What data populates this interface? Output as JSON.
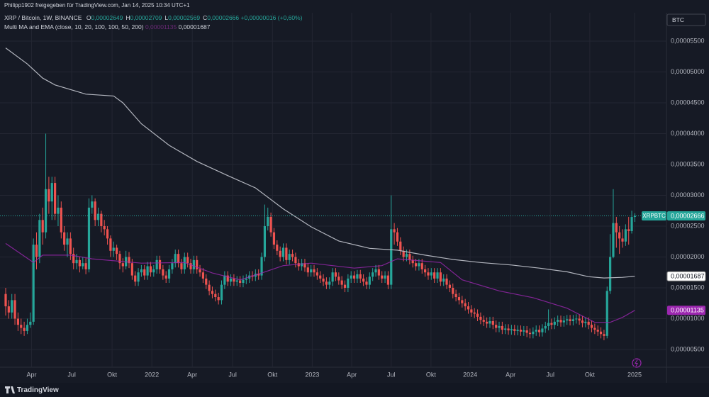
{
  "header": {
    "title": "Philipp1902 freigegeben für TradingView.com, Jan 14, 2025 10:34 UTC+1"
  },
  "chart_data": {
    "type": "candlestick",
    "symbol": "XRP / Bitcoin, 1W, BINANCE",
    "ohlc_legend": [
      {
        "key": "O",
        "value": "0,00002649"
      },
      {
        "key": "H",
        "value": "0,00002709"
      },
      {
        "key": "L",
        "value": "0,00002569"
      },
      {
        "key": "C",
        "value": "0,00002666"
      }
    ],
    "change": "+0,00000016 (+0,60%)",
    "indicator": "Multi MA and EMA (close, 10, 20, 100, 100, 50, 200)",
    "currency": "BTC",
    "ticker": "XRPBTC",
    "up_color": "#26a69a",
    "down_color": "#ef5350",
    "open": [
      1.4e-05,
      1.2e-05,
      1.1e-05,
      1.3e-05,
      1e-05,
      9e-06,
      8.5e-06,
      8e-06,
      9e-06,
      9.5e-06,
      2.2e-05,
      2e-05,
      2.6e-05,
      2.4e-05,
      3.1e-05,
      2.9e-05,
      3.2e-05,
      2.7e-05,
      2.8e-05,
      2.4e-05,
      2.2e-05,
      2.3e-05,
      2.05e-05,
      1.9e-05,
      1.95e-05,
      1.85e-05,
      1.9e-05,
      1.8e-05,
      2.8e-05,
      2.9e-05,
      2.6e-05,
      2.7e-05,
      2.5e-05,
      2.45e-05,
      2.3e-05,
      2.1e-05,
      2.15e-05,
      2.05e-05,
      1.9e-05,
      1.85e-05,
      2e-05,
      1.9e-05,
      1.7e-05,
      1.6e-05,
      1.75e-05,
      1.8e-05,
      1.7e-05,
      1.85e-05,
      1.75e-05,
      1.8e-05,
      1.95e-05,
      1.8e-05,
      1.7e-05,
      1.65e-05,
      1.8e-05,
      1.9e-05,
      2.05e-05,
      1.9e-05,
      1.8e-05,
      2e-05,
      1.9e-05,
      1.8e-05,
      1.95e-05,
      1.8e-05,
      1.75e-05,
      1.65e-05,
      1.55e-05,
      1.45e-05,
      1.4e-05,
      1.35e-05,
      1.3e-05,
      1.55e-05,
      1.7e-05,
      1.6e-05,
      1.65e-05,
      1.6e-05,
      1.62e-05,
      1.58e-05,
      1.63e-05,
      1.65e-05,
      1.7e-05,
      1.68e-05,
      1.73e-05,
      1.7e-05,
      2e-05,
      2.5e-05,
      2.65e-05,
      2.4e-05,
      2.2e-05,
      2.1e-05,
      2e-05,
      2.15e-05,
      1.95e-05,
      2.05e-05,
      2e-05,
      1.9e-05,
      1.85e-05,
      1.9e-05,
      1.83e-05,
      1.75e-05,
      1.8e-05,
      1.75e-05,
      1.7e-05,
      1.65e-05,
      1.6e-05,
      1.55e-05,
      1.6e-05,
      1.75e-05,
      1.68e-05,
      1.62e-05,
      1.55e-05,
      1.5e-05,
      1.65e-05,
      1.7e-05,
      1.65e-05,
      1.72e-05,
      1.65e-05,
      1.6e-05,
      1.55e-05,
      1.68e-05,
      1.75e-05,
      1.8e-05,
      1.7e-05,
      1.65e-05,
      1.7e-05,
      1.55e-05,
      2.45e-05,
      2.4e-05,
      2.25e-05,
      2.1e-05,
      2e-05,
      2.05e-05,
      1.95e-05,
      1.9e-05,
      1.85e-05,
      1.9e-05,
      1.8e-05,
      1.75e-05,
      1.7e-05,
      1.75e-05,
      1.65e-05,
      1.75e-05,
      1.6e-05,
      1.65e-05,
      1.55e-05,
      1.5e-05,
      1.4e-05,
      1.35e-05,
      1.3e-05,
      1.25e-05,
      1.2e-05,
      1.15e-05,
      1.1e-05,
      1.08e-05,
      1.03e-05,
      9.8e-06,
      9.5e-06,
      9.2e-06,
      9.6e-06,
      9e-06,
      8.5e-06,
      8.8e-06,
      8.2e-06,
      8.4e-06,
      8.1e-06,
      8.3e-06,
      8e-06,
      8.2e-06,
      7.9e-06,
      8.1e-06,
      7.7e-06,
      7.5e-06,
      7.9e-06,
      8.2e-06,
      7.8e-06,
      8.4e-06,
      8.8e-06,
      9.3e-06,
      9e-06,
      9.5e-06,
      9.8e-06,
      9.4e-06,
      9.7e-06,
      9.9e-06,
      9.6e-06,
      9.9e-06,
      1e-05,
      9.7e-06,
      9.3e-06,
      9.5e-06,
      9e-06,
      8.5e-06,
      8.2e-06,
      7.9e-06,
      7.5e-06,
      7.2e-06,
      1.45e-05,
      2e-05,
      2.55e-05,
      2.4e-05,
      2.3e-05,
      2.25e-05,
      2.45e-05,
      2.42e-05,
      2.649e-05
    ],
    "high": [
      1.5e-05,
      1.3e-05,
      1.4e-05,
      1.4e-05,
      1.1e-05,
      1e-05,
      9.5e-06,
      1e-05,
      1.1e-05,
      2.3e-05,
      2.4e-05,
      2.7e-05,
      2.8e-05,
      4e-05,
      3.3e-05,
      3.3e-05,
      3.3e-05,
      3e-05,
      2.9e-05,
      2.5e-05,
      2.4e-05,
      2.4e-05,
      2.15e-05,
      2.05e-05,
      2e-05,
      2e-05,
      1.98e-05,
      2.95e-05,
      3e-05,
      2.95e-05,
      2.8e-05,
      2.75e-05,
      2.6e-05,
      2.5e-05,
      2.35e-05,
      2.25e-05,
      2.2e-05,
      2.1e-05,
      1.98e-05,
      2.1e-05,
      2.08e-05,
      1.97e-05,
      1.77e-05,
      1.82e-05,
      1.87e-05,
      1.87e-05,
      1.92e-05,
      1.92e-05,
      1.87e-05,
      2.02e-05,
      2.02e-05,
      1.87e-05,
      1.77e-05,
      1.87e-05,
      1.97e-05,
      2.12e-05,
      2.12e-05,
      1.97e-05,
      2.07e-05,
      2.07e-05,
      1.97e-05,
      2.02e-05,
      2.02e-05,
      1.87e-05,
      1.82e-05,
      1.72e-05,
      1.62e-05,
      1.52e-05,
      1.47e-05,
      1.42e-05,
      1.62e-05,
      1.77e-05,
      1.77e-05,
      1.72e-05,
      1.72e-05,
      1.69e-05,
      1.69e-05,
      1.7e-05,
      1.72e-05,
      1.77e-05,
      1.77e-05,
      1.8e-05,
      1.8e-05,
      2.07e-05,
      2.85e-05,
      2.8e-05,
      2.72e-05,
      2.47e-05,
      2.27e-05,
      2.17e-05,
      2.22e-05,
      2.22e-05,
      2.12e-05,
      2.12e-05,
      2.07e-05,
      1.97e-05,
      1.97e-05,
      1.97e-05,
      1.9e-05,
      1.87e-05,
      1.87e-05,
      1.82e-05,
      1.77e-05,
      1.72e-05,
      1.67e-05,
      1.67e-05,
      1.82e-05,
      1.82e-05,
      1.75e-05,
      1.69e-05,
      1.62e-05,
      1.72e-05,
      1.77e-05,
      1.77e-05,
      1.79e-05,
      1.79e-05,
      1.72e-05,
      1.67e-05,
      1.75e-05,
      1.82e-05,
      1.87e-05,
      1.87e-05,
      1.77e-05,
      1.77e-05,
      1.77e-05,
      3e-05,
      2.55e-05,
      2.47e-05,
      2.32e-05,
      2.17e-05,
      2.12e-05,
      2.12e-05,
      2.02e-05,
      1.97e-05,
      1.97e-05,
      1.97e-05,
      1.87e-05,
      1.82e-05,
      1.82e-05,
      1.82e-05,
      1.82e-05,
      1.82e-05,
      1.72e-05,
      1.72e-05,
      1.62e-05,
      1.57e-05,
      1.47e-05,
      1.42e-05,
      1.37e-05,
      1.32e-05,
      1.27e-05,
      1.22e-05,
      1.17e-05,
      1.15e-05,
      1.1e-05,
      1.05e-05,
      1.02e-05,
      1.03e-05,
      1.03e-05,
      9.7e-06,
      9.5e-06,
      9.5e-06,
      9.1e-06,
      9.1e-06,
      9e-06,
      9e-06,
      8.9e-06,
      8.9e-06,
      8.8e-06,
      8.8e-06,
      8.4e-06,
      8.6e-06,
      8.9e-06,
      8.9e-06,
      9.1e-06,
      9.5e-06,
      1.15e-05,
      1e-05,
      1.02e-05,
      1.05e-05,
      1.05e-05,
      1.04e-05,
      1.06e-05,
      1.06e-05,
      1.06e-05,
      1.07e-05,
      1.07e-05,
      1.04e-05,
      1.02e-05,
      1.02e-05,
      9.7e-06,
      9.2e-06,
      8.9e-06,
      8.6e-06,
      8.2e-06,
      1.52e-05,
      2.37e-05,
      3.1e-05,
      2.65e-05,
      2.5e-05,
      2.45e-05,
      2.53e-05,
      2.65e-05,
      2.75e-05,
      2.709e-05
    ],
    "low": [
      1.05e-05,
      1e-05,
      1e-05,
      9e-06,
      8e-06,
      7.5e-06,
      7.2e-06,
      7.5e-06,
      8.5e-06,
      9e-06,
      1.8e-05,
      1.9e-05,
      2.2e-05,
      2.3e-05,
      2.7e-05,
      2.6e-05,
      2.6e-05,
      2.5e-05,
      2.3e-05,
      2.1e-05,
      2e-05,
      1.95e-05,
      1.8e-05,
      1.8e-05,
      1.75e-05,
      1.8e-05,
      1.72e-05,
      1.75e-05,
      2.7e-05,
      2.5e-05,
      2.5e-05,
      2.4e-05,
      2.35e-05,
      2.2e-05,
      2e-05,
      2e-05,
      1.95e-05,
      1.8e-05,
      1.75e-05,
      1.8e-05,
      1.82e-05,
      1.63e-05,
      1.53e-05,
      1.53e-05,
      1.68e-05,
      1.63e-05,
      1.63e-05,
      1.68e-05,
      1.68e-05,
      1.73e-05,
      1.73e-05,
      1.63e-05,
      1.58e-05,
      1.58e-05,
      1.73e-05,
      1.83e-05,
      1.83e-05,
      1.73e-05,
      1.73e-05,
      1.83e-05,
      1.73e-05,
      1.73e-05,
      1.73e-05,
      1.68e-05,
      1.58e-05,
      1.48e-05,
      1.38e-05,
      1.33e-05,
      1.28e-05,
      1.23e-05,
      1.23e-05,
      1.48e-05,
      1.53e-05,
      1.53e-05,
      1.53e-05,
      1.53e-05,
      1.51e-05,
      1.51e-05,
      1.56e-05,
      1.58e-05,
      1.61e-05,
      1.61e-05,
      1.63e-05,
      1.63e-05,
      1.93e-05,
      2.43e-05,
      2.33e-05,
      2.13e-05,
      2.03e-05,
      1.93e-05,
      1.93e-05,
      1.88e-05,
      1.88e-05,
      1.93e-05,
      1.83e-05,
      1.78e-05,
      1.78e-05,
      1.76e-05,
      1.68e-05,
      1.68e-05,
      1.68e-05,
      1.63e-05,
      1.58e-05,
      1.53e-05,
      1.48e-05,
      1.48e-05,
      1.53e-05,
      1.61e-05,
      1.55e-05,
      1.48e-05,
      1.43e-05,
      1.43e-05,
      1.58e-05,
      1.58e-05,
      1.58e-05,
      1.58e-05,
      1.53e-05,
      1.48e-05,
      1.48e-05,
      1.61e-05,
      1.68e-05,
      1.63e-05,
      1.58e-05,
      1.58e-05,
      1.48e-05,
      1.48e-05,
      2.2e-05,
      2.18e-05,
      2.03e-05,
      1.93e-05,
      1.93e-05,
      1.88e-05,
      1.83e-05,
      1.78e-05,
      1.78e-05,
      1.73e-05,
      1.68e-05,
      1.63e-05,
      1.63e-05,
      1.58e-05,
      1.58e-05,
      1.53e-05,
      1.53e-05,
      1.48e-05,
      1.43e-05,
      1.33e-05,
      1.28e-05,
      1.23e-05,
      1.18e-05,
      1.13e-05,
      1.08e-05,
      1.03e-05,
      1.01e-05,
      9.6e-06,
      9.1e-06,
      8.8e-06,
      8.5e-06,
      8.5e-06,
      8.3e-06,
      7.8e-06,
      7.8e-06,
      7.5e-06,
      7.5e-06,
      7.4e-06,
      7.4e-06,
      7.3e-06,
      7.3e-06,
      7.2e-06,
      7.2e-06,
      7e-06,
      6.8e-06,
      6.8e-06,
      7.2e-06,
      7.1e-06,
      7.1e-06,
      7.7e-06,
      8.1e-06,
      8.3e-06,
      8.3e-06,
      8.8e-06,
      8.7e-06,
      8.7e-06,
      9e-06,
      8.9e-06,
      8.9e-06,
      9.2e-06,
      9e-06,
      8.6e-06,
      8.6e-06,
      8.3e-06,
      7.8e-06,
      7.5e-06,
      7.2e-06,
      6.8e-06,
      6.5e-06,
      6.8e-06,
      1.4e-05,
      1.98e-05,
      2.15e-05,
      2.05e-05,
      2.15e-05,
      2.18e-05,
      2.2e-05,
      2.38e-05,
      2.569e-05
    ],
    "close": [
      1.2e-05,
      1.1e-05,
      1.3e-05,
      1e-05,
      9e-06,
      8.5e-06,
      8e-06,
      9e-06,
      9.5e-06,
      2.2e-05,
      2e-05,
      2.6e-05,
      2.4e-05,
      3.1e-05,
      2.9e-05,
      3.2e-05,
      2.7e-05,
      2.8e-05,
      2.4e-05,
      2.2e-05,
      2.3e-05,
      2.05e-05,
      1.9e-05,
      1.95e-05,
      1.85e-05,
      1.9e-05,
      1.8e-05,
      2.8e-05,
      2.9e-05,
      2.6e-05,
      2.7e-05,
      2.5e-05,
      2.45e-05,
      2.3e-05,
      2.1e-05,
      2.15e-05,
      2.05e-05,
      1.9e-05,
      1.85e-05,
      2e-05,
      1.9e-05,
      1.7e-05,
      1.6e-05,
      1.75e-05,
      1.8e-05,
      1.7e-05,
      1.85e-05,
      1.75e-05,
      1.8e-05,
      1.95e-05,
      1.8e-05,
      1.7e-05,
      1.65e-05,
      1.8e-05,
      1.9e-05,
      2.05e-05,
      1.9e-05,
      1.8e-05,
      2e-05,
      1.9e-05,
      1.8e-05,
      1.95e-05,
      1.8e-05,
      1.75e-05,
      1.65e-05,
      1.55e-05,
      1.45e-05,
      1.4e-05,
      1.35e-05,
      1.3e-05,
      1.55e-05,
      1.7e-05,
      1.6e-05,
      1.65e-05,
      1.6e-05,
      1.62e-05,
      1.58e-05,
      1.63e-05,
      1.65e-05,
      1.7e-05,
      1.68e-05,
      1.73e-05,
      1.7e-05,
      2e-05,
      2.5e-05,
      2.65e-05,
      2.4e-05,
      2.2e-05,
      2.1e-05,
      2e-05,
      2.15e-05,
      1.95e-05,
      2.05e-05,
      2e-05,
      1.9e-05,
      1.85e-05,
      1.9e-05,
      1.83e-05,
      1.75e-05,
      1.8e-05,
      1.75e-05,
      1.7e-05,
      1.65e-05,
      1.6e-05,
      1.55e-05,
      1.6e-05,
      1.75e-05,
      1.68e-05,
      1.62e-05,
      1.55e-05,
      1.5e-05,
      1.65e-05,
      1.7e-05,
      1.65e-05,
      1.72e-05,
      1.65e-05,
      1.6e-05,
      1.55e-05,
      1.68e-05,
      1.75e-05,
      1.8e-05,
      1.7e-05,
      1.65e-05,
      1.7e-05,
      1.55e-05,
      2.45e-05,
      2.4e-05,
      2.25e-05,
      2.1e-05,
      2e-05,
      2.05e-05,
      1.95e-05,
      1.9e-05,
      1.85e-05,
      1.9e-05,
      1.8e-05,
      1.75e-05,
      1.7e-05,
      1.75e-05,
      1.65e-05,
      1.75e-05,
      1.6e-05,
      1.65e-05,
      1.55e-05,
      1.5e-05,
      1.4e-05,
      1.35e-05,
      1.3e-05,
      1.25e-05,
      1.2e-05,
      1.15e-05,
      1.1e-05,
      1.08e-05,
      1.03e-05,
      9.8e-06,
      9.5e-06,
      9.2e-06,
      9.6e-06,
      9e-06,
      8.5e-06,
      8.8e-06,
      8.2e-06,
      8.4e-06,
      8.1e-06,
      8.3e-06,
      8e-06,
      8.2e-06,
      7.9e-06,
      8.1e-06,
      7.7e-06,
      7.5e-06,
      7.9e-06,
      8.2e-06,
      7.8e-06,
      8.4e-06,
      8.8e-06,
      9.3e-06,
      9e-06,
      9.5e-06,
      9.8e-06,
      9.4e-06,
      9.7e-06,
      9.9e-06,
      9.6e-06,
      9.9e-06,
      1e-05,
      9.7e-06,
      9.3e-06,
      9.5e-06,
      9e-06,
      8.5e-06,
      8.2e-06,
      7.9e-06,
      7.5e-06,
      7.2e-06,
      1.45e-05,
      2e-05,
      2.55e-05,
      2.4e-05,
      2.3e-05,
      2.25e-05,
      2.45e-05,
      2.42e-05,
      2.649e-05,
      2.666e-05
    ],
    "last_label": "0,00002666",
    "lines": [
      {
        "color": "#b2b5be",
        "x": [
          0,
          7,
          12,
          16,
          26,
          35,
          38,
          44,
          53,
          62,
          72,
          81,
          90,
          99,
          108,
          118,
          127,
          136,
          145,
          154,
          164,
          173,
          182,
          189,
          194,
          200,
          204
        ],
        "values": [
          5.39e-05,
          5.13e-05,
          4.9e-05,
          4.79e-05,
          4.64e-05,
          4.61e-05,
          4.5e-05,
          4.16e-05,
          3.81e-05,
          3.55e-05,
          3.32e-05,
          3.12e-05,
          2.78e-05,
          2.49e-05,
          2.26e-05,
          2.14e-05,
          2.11e-05,
          2.03e-05,
          1.96e-05,
          1.91e-05,
          1.87e-05,
          1.82e-05,
          1.76e-05,
          1.68e-05,
          1.66e-05,
          1.67e-05,
          1.687e-05
        ],
        "value_label": "0,00001687"
      },
      {
        "color": "#9c27b0",
        "x": [
          0,
          9,
          12,
          21,
          28,
          44,
          58,
          67,
          76,
          83,
          90,
          99,
          113,
          122,
          127,
          141,
          148,
          160,
          171,
          182,
          191,
          196,
          200,
          204
        ],
        "values": [
          2.22e-05,
          1.91e-05,
          2.03e-05,
          2.03e-05,
          1.97e-05,
          1.9e-05,
          1.91e-05,
          1.74e-05,
          1.63e-05,
          1.74e-05,
          1.86e-05,
          1.9e-05,
          1.82e-05,
          1.86e-05,
          1.97e-05,
          1.91e-05,
          1.63e-05,
          1.45e-05,
          1.34e-05,
          1.17e-05,
          9.4e-06,
          9.4e-06,
          1.02e-05,
          1.135e-05
        ],
        "value_label": "0,00001135"
      }
    ],
    "xlim": [
      -1.84,
      214.25
    ],
    "xticks": [
      {
        "value": 8.4,
        "label": "Apr"
      },
      {
        "value": 21.4,
        "label": "Jul"
      },
      {
        "value": 34.5,
        "label": "Okt"
      },
      {
        "value": 47.4,
        "label": "2022"
      },
      {
        "value": 60.5,
        "label": "Apr"
      },
      {
        "value": 73.6,
        "label": "Jul"
      },
      {
        "value": 86.5,
        "label": "Okt"
      },
      {
        "value": 99.4,
        "label": "2023"
      },
      {
        "value": 112.2,
        "label": "Apr"
      },
      {
        "value": 125,
        "label": "Jul"
      },
      {
        "value": 137.9,
        "label": "Okt"
      },
      {
        "value": 150.6,
        "label": "2024"
      },
      {
        "value": 163.7,
        "label": "Apr"
      },
      {
        "value": 176.6,
        "label": "Jul"
      },
      {
        "value": 189.4,
        "label": "Okt"
      },
      {
        "value": 203.9,
        "label": "2025"
      }
    ],
    "ylim": [
      -6e-08,
      5.937e-05
    ],
    "yticks": [
      {
        "value": 5.5e-05,
        "label": "0,00005500"
      },
      {
        "value": 5e-05,
        "label": "0,00005000"
      },
      {
        "value": 4.5e-05,
        "label": "0,00004500"
      },
      {
        "value": 4e-05,
        "label": "0,00004000"
      },
      {
        "value": 3.5e-05,
        "label": "0,00003500"
      },
      {
        "value": 3e-05,
        "label": "0,00003000"
      },
      {
        "value": 2.5e-05,
        "label": "0,00002500"
      },
      {
        "value": 2e-05,
        "label": "0,00002000"
      },
      {
        "value": 1.5e-05,
        "label": "0,00001500"
      },
      {
        "value": 1e-05,
        "label": "0,00001000"
      },
      {
        "value": 5e-06,
        "label": "0,00000500"
      }
    ],
    "grid": true
  },
  "footer": {
    "brand": "TradingView"
  }
}
